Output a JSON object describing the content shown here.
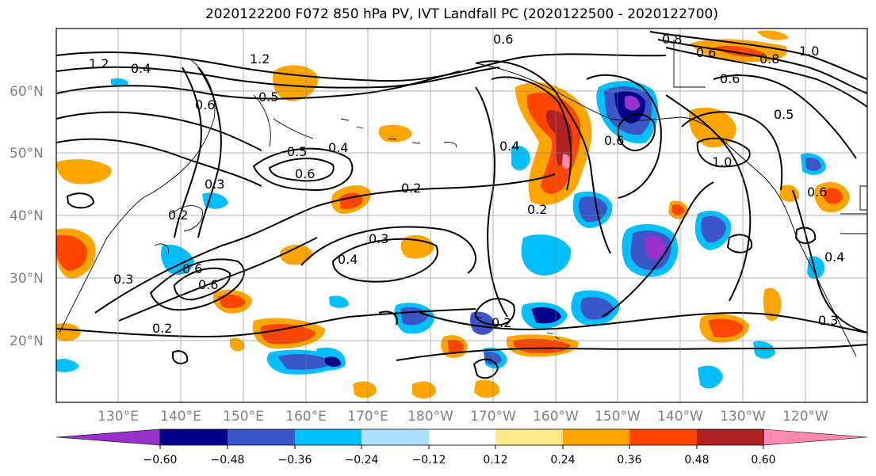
{
  "title": "2020122200 F072 850 hPa PV, IVT Landfall PC (2020122500 - 2020122700)",
  "lat_labels": [
    "60°N",
    "50°N",
    "40°N",
    "30°N",
    "20°N"
  ],
  "lon_labels": [
    "130°E",
    "140°E",
    "150°E",
    "160°E",
    "170°E",
    "180°W",
    "170°W",
    "160°W",
    "150°W",
    "140°W",
    "130°W",
    "120°W"
  ],
  "colorbar": {
    "ticks": [
      "−0.60",
      "−0.48",
      "−0.36",
      "−0.24",
      "−0.12",
      "0.12",
      "0.24",
      "0.36",
      "0.48",
      "0.60"
    ],
    "colors": [
      "#9932cc",
      "#00008b",
      "#3a56c9",
      "#00bfff",
      "#b0e0ff",
      "#ffffff",
      "#ffe98a",
      "#ffa500",
      "#ff4500",
      "#b22222",
      "#ff88b0"
    ]
  },
  "contour_labels": [
    "1.2",
    "0.4",
    "1.2",
    "0.6",
    "0.5",
    "0.6",
    "0.5",
    "0.4",
    "0.6",
    "0.3",
    "0.2",
    "0.3",
    "0.2",
    "0.4",
    "0.3",
    "0.6",
    "0.6",
    "0.2",
    "0.2",
    "0.4",
    "1.0",
    "0.6",
    "0.5",
    "0.8",
    "0.8",
    "0.6",
    "0.6",
    "0.4",
    "0.3",
    "0.6",
    "1.0",
    "0.2"
  ]
}
